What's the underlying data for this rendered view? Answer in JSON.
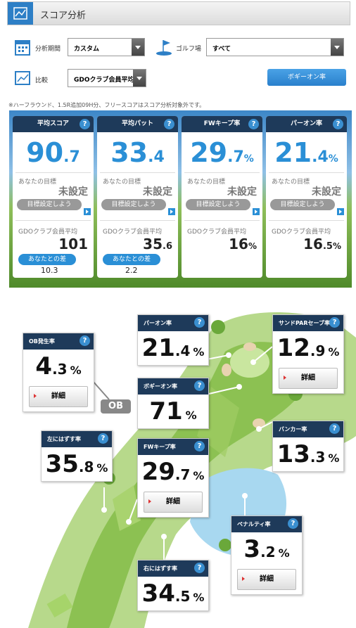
{
  "header": {
    "title": "スコア分析"
  },
  "help_icon": "?",
  "filters": {
    "period_label": "分析期間",
    "period_value": "カスタム",
    "course_label": "ゴルフ場",
    "course_value": "すべて",
    "compare_label": "比較",
    "compare_value": "GDOクラブ会員平均",
    "button": "ボギーオン率"
  },
  "note": "※ハーフラウンド、1.5R追加09H分、フリースコアはスコア分析対象外です。",
  "summary_cards": [
    {
      "title": "平均スコア",
      "int": "90",
      "dec": ".7",
      "goal_label": "あなたの目標",
      "goal_value": "未設定",
      "goal_button": "目標設定しよう",
      "avg_label": "GDOクラブ会員平均",
      "avg_int": "101",
      "diff_label": "あなたとの差",
      "diff": "10.3"
    },
    {
      "title": "平均パット",
      "int": "33",
      "dec": ".4",
      "goal_label": "あなたの目標",
      "goal_value": "未設定",
      "goal_button": "目標設定しよう",
      "avg_label": "GDOクラブ会員平均",
      "avg_int": "35",
      "avg_dec": ".6",
      "diff_label": "あなたとの差",
      "diff": "2.2"
    },
    {
      "title": "FWキープ率",
      "int": "29",
      "dec": ".7",
      "unit": "%",
      "goal_label": "あなたの目標",
      "goal_value": "未設定",
      "goal_button": "目標設定しよう",
      "avg_label": "GDOクラブ会員平均",
      "avg_int": "16",
      "avg_unit": "%"
    },
    {
      "title": "パーオン率",
      "int": "21",
      "dec": ".4",
      "unit": "%",
      "goal_label": "あなたの目標",
      "goal_value": "未設定",
      "goal_button": "目標設定しよう",
      "avg_label": "GDOクラブ会員平均",
      "avg_int": "16",
      "avg_dec": ".5",
      "avg_unit": "%"
    }
  ],
  "hole_map": {
    "ob_marker": "OB",
    "cards": [
      {
        "title": "OB発生率",
        "int": "4",
        "dec": ".3",
        "unit": "%",
        "button": "詳細"
      },
      {
        "title": "パーオン率",
        "int": "21",
        "dec": ".4",
        "unit": "%"
      },
      {
        "title": "サンドPARセーブ率",
        "int": "12",
        "dec": ".9",
        "unit": "%",
        "button": "詳細"
      },
      {
        "title": "ボギーオン率",
        "int": "71",
        "unit": "%"
      },
      {
        "title": "左にはずす率",
        "int": "35",
        "dec": ".8",
        "unit": "%"
      },
      {
        "title": "FWキープ率",
        "int": "29",
        "dec": ".7",
        "unit": "%",
        "button": "詳細"
      },
      {
        "title": "バンカー率",
        "int": "13",
        "dec": ".3",
        "unit": "%"
      },
      {
        "title": "ペナルティ率",
        "int": "3",
        "dec": ".2",
        "unit": "%",
        "button": "詳細"
      },
      {
        "title": "右にはずす率",
        "int": "34",
        "dec": ".5",
        "unit": "%"
      }
    ]
  }
}
